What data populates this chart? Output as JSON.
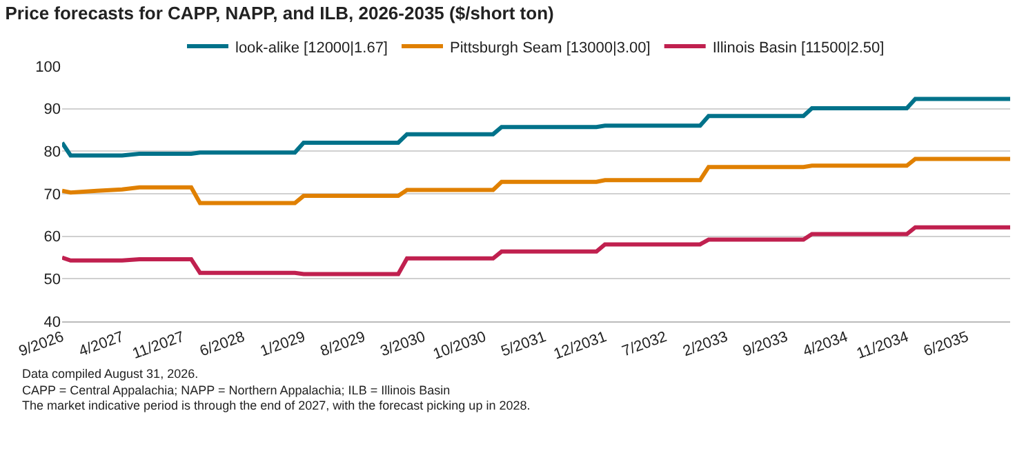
{
  "chart_data": {
    "type": "line",
    "title": "Price forecasts for CAPP, NAPP, and ILB, 2026-2035 ($/short ton)",
    "ylim": [
      40,
      100
    ],
    "yticks": [
      40,
      50,
      60,
      70,
      80,
      90,
      100
    ],
    "xlim": [
      "2026-09",
      "2035-11"
    ],
    "xticks": [
      {
        "value": "2026-09",
        "label": "9/2026"
      },
      {
        "value": "2027-04",
        "label": "4/2027"
      },
      {
        "value": "2027-11",
        "label": "11/2027"
      },
      {
        "value": "2028-06",
        "label": "6/2028"
      },
      {
        "value": "2029-01",
        "label": "1/2029"
      },
      {
        "value": "2029-08",
        "label": "8/2029"
      },
      {
        "value": "2030-03",
        "label": "3/2030"
      },
      {
        "value": "2030-10",
        "label": "10/2030"
      },
      {
        "value": "2031-05",
        "label": "5/2031"
      },
      {
        "value": "2031-12",
        "label": "12/2031"
      },
      {
        "value": "2032-07",
        "label": "7/2032"
      },
      {
        "value": "2033-02",
        "label": "2/2033"
      },
      {
        "value": "2033-09",
        "label": "9/2033"
      },
      {
        "value": "2034-04",
        "label": "4/2034"
      },
      {
        "value": "2034-11",
        "label": "11/2034"
      },
      {
        "value": "2035-06",
        "label": "6/2035"
      }
    ],
    "grid": "y",
    "legend": "top",
    "marker": "none",
    "line_style": "solid",
    "series": [
      {
        "name": "look-alike [12000|1.67]",
        "color": "#00728a",
        "x": [
          "2026-09",
          "2026-10",
          "2027-04",
          "2027-06",
          "2027-12",
          "2028-01",
          "2028-12",
          "2029-01",
          "2029-12",
          "2030-01",
          "2030-11",
          "2030-12",
          "2031-11",
          "2031-12",
          "2032-11",
          "2032-12",
          "2033-11",
          "2033-12",
          "2034-11",
          "2034-12",
          "2035-11"
        ],
        "values": [
          82,
          79,
          79,
          79.4,
          79.4,
          79.7,
          79.7,
          82,
          82,
          84,
          84,
          85.7,
          85.7,
          86,
          86,
          88.3,
          88.3,
          90.1,
          90.1,
          92.3,
          92.3
        ]
      },
      {
        "name": "Pittsburgh Seam [13000|3.00]",
        "color": "#e08000",
        "x": [
          "2026-09",
          "2026-10",
          "2027-01",
          "2027-04",
          "2027-06",
          "2027-12",
          "2028-01",
          "2028-12",
          "2029-01",
          "2029-12",
          "2030-01",
          "2030-11",
          "2030-12",
          "2031-11",
          "2031-12",
          "2032-11",
          "2032-12",
          "2033-11",
          "2033-12",
          "2034-11",
          "2034-12",
          "2035-11"
        ],
        "values": [
          70.7,
          70.3,
          70.7,
          71,
          71.5,
          71.5,
          67.8,
          67.8,
          69.5,
          69.5,
          70.9,
          70.9,
          72.8,
          72.8,
          73.2,
          73.2,
          76.3,
          76.3,
          76.6,
          76.6,
          78.2,
          78.2
        ]
      },
      {
        "name": "Illinois Basin [11500|2.50]",
        "color": "#c0204f",
        "x": [
          "2026-09",
          "2026-10",
          "2027-04",
          "2027-06",
          "2027-12",
          "2028-01",
          "2028-12",
          "2029-01",
          "2029-12",
          "2030-01",
          "2030-11",
          "2030-12",
          "2031-11",
          "2031-12",
          "2032-11",
          "2032-12",
          "2033-11",
          "2033-12",
          "2034-11",
          "2034-12",
          "2035-11"
        ],
        "values": [
          55,
          54.3,
          54.3,
          54.6,
          54.6,
          51.4,
          51.4,
          51.1,
          51.1,
          54.8,
          54.8,
          56.4,
          56.4,
          58.1,
          58.1,
          59.2,
          59.2,
          60.5,
          60.5,
          62.1,
          62.1
        ]
      }
    ],
    "annotations": [
      "Data compiled August 31, 2026.",
      "CAPP = Central Appalachia; NAPP = Northern Appalachia; ILB = Illinois Basin",
      "The market indicative period is through the end of 2027, with the forecast picking up in 2028."
    ]
  }
}
